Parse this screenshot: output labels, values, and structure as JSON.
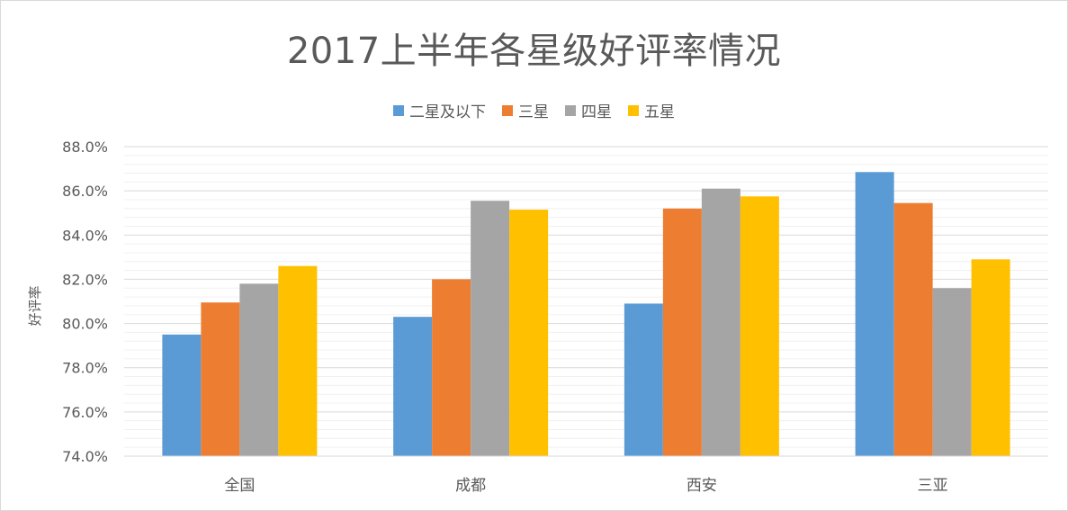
{
  "chart_data": {
    "type": "bar",
    "title": "2017上半年各星级好评率情况",
    "ylabel": "好评率",
    "xlabel": "",
    "categories": [
      "全国",
      "成都",
      "西安",
      "三亚"
    ],
    "series": [
      {
        "name": "二星及以下",
        "color": "#5B9BD5",
        "values": [
          79.5,
          80.3,
          80.9,
          86.85
        ]
      },
      {
        "name": "三星",
        "color": "#ED7D31",
        "values": [
          80.95,
          82.0,
          85.2,
          85.45
        ]
      },
      {
        "name": "四星",
        "color": "#A5A5A5",
        "values": [
          81.8,
          85.55,
          86.1,
          81.6
        ]
      },
      {
        "name": "五星",
        "color": "#FFC000",
        "values": [
          82.6,
          85.15,
          85.75,
          82.9
        ]
      }
    ],
    "ylim": [
      74,
      88
    ],
    "yticks": [
      "74.0%",
      "76.0%",
      "78.0%",
      "80.0%",
      "82.0%",
      "84.0%",
      "86.0%",
      "88.0%"
    ],
    "ytick_values": [
      74,
      76,
      78,
      80,
      82,
      84,
      86,
      88
    ],
    "grid": true,
    "legend_position": "top"
  }
}
